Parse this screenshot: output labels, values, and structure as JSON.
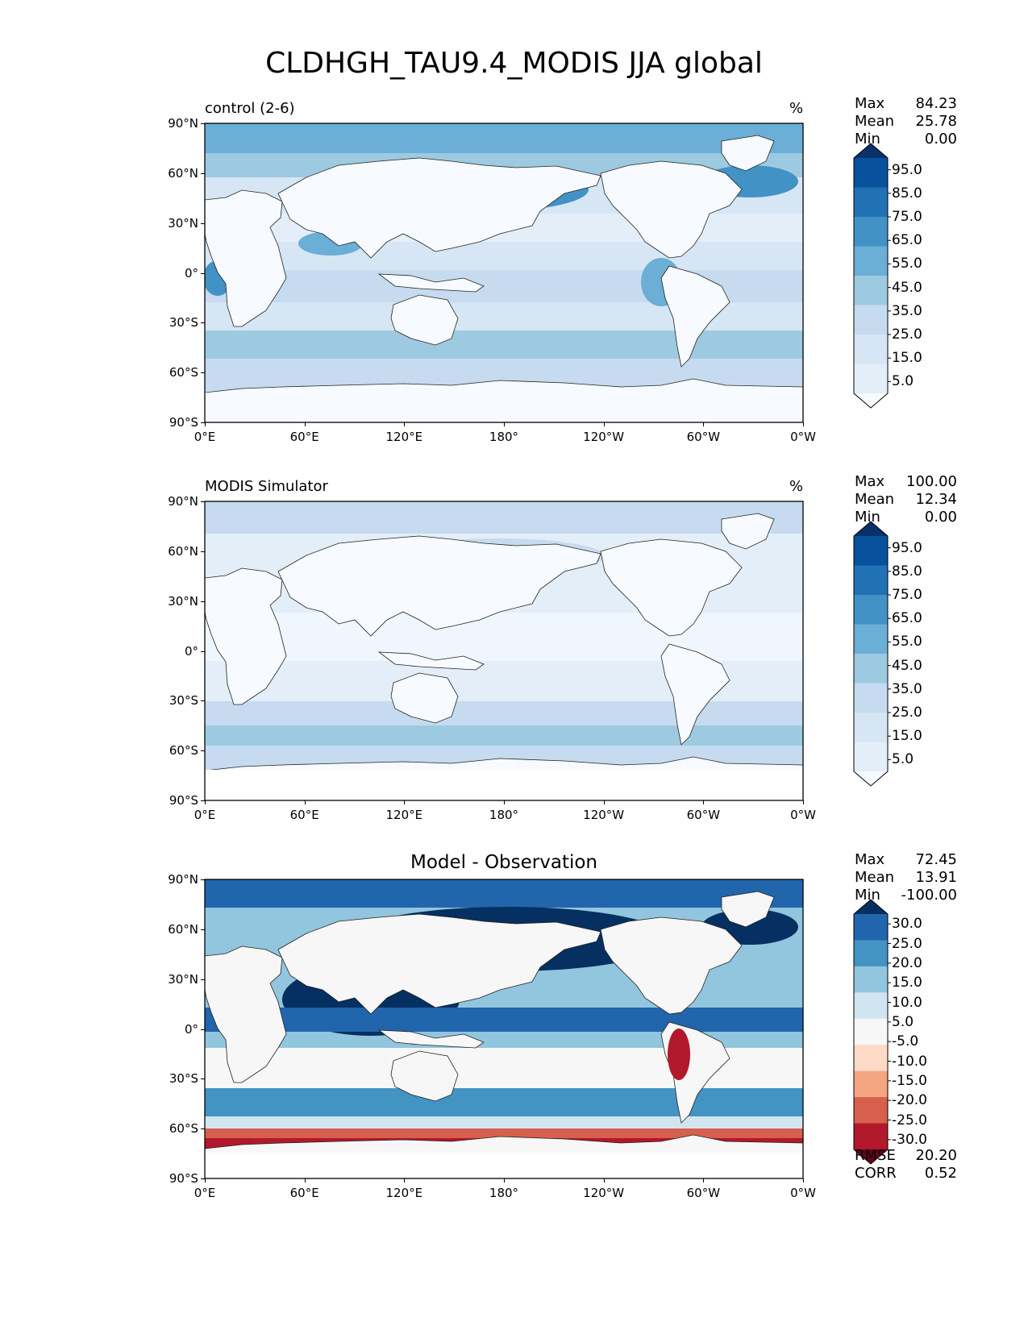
{
  "title": "CLDHGH_TAU9.4_MODIS JJA global",
  "lat_ticks": [
    "90°N",
    "60°N",
    "30°N",
    "0°",
    "30°S",
    "60°S",
    "90°S"
  ],
  "lon_ticks": [
    "0°E",
    "60°E",
    "120°E",
    "180°",
    "120°W",
    "60°W",
    "0°W"
  ],
  "panels": [
    {
      "left_title": "control (2-6)",
      "right_title": "%",
      "center_title": "",
      "stats": [
        {
          "label": "Max",
          "value": "84.23"
        },
        {
          "label": "Mean",
          "value": "25.78"
        },
        {
          "label": "Min",
          "value": "0.00"
        }
      ],
      "colorbar_labels": [
        "95.0",
        "85.0",
        "75.0",
        "65.0",
        "55.0",
        "45.0",
        "35.0",
        "25.0",
        "15.0",
        "5.0"
      ],
      "colorbar_colors": [
        "#08306b",
        "#08519c",
        "#2171b5",
        "#4292c6",
        "#6baed6",
        "#9ecae1",
        "#c6dbef",
        "#d6e6f4",
        "#e3eef9",
        "#f7fbff"
      ]
    },
    {
      "left_title": "MODIS Simulator",
      "right_title": "%",
      "center_title": "",
      "stats": [
        {
          "label": "Max",
          "value": "100.00"
        },
        {
          "label": "Mean",
          "value": "12.34"
        },
        {
          "label": "Min",
          "value": "0.00"
        }
      ],
      "colorbar_labels": [
        "95.0",
        "85.0",
        "75.0",
        "65.0",
        "55.0",
        "45.0",
        "35.0",
        "25.0",
        "15.0",
        "5.0"
      ],
      "colorbar_colors": [
        "#08306b",
        "#08519c",
        "#2171b5",
        "#4292c6",
        "#6baed6",
        "#9ecae1",
        "#c6dbef",
        "#d6e6f4",
        "#e3eef9",
        "#f7fbff"
      ]
    },
    {
      "left_title": "",
      "right_title": "",
      "center_title": "Model - Observation",
      "stats": [
        {
          "label": "Max",
          "value": "72.45"
        },
        {
          "label": "Mean",
          "value": "13.91"
        },
        {
          "label": "Min",
          "value": "-100.00"
        }
      ],
      "colorbar_labels": [
        "30.0",
        "25.0",
        "20.0",
        "15.0",
        "10.0",
        "5.0",
        "-5.0",
        "-10.0",
        "-15.0",
        "-20.0",
        "-25.0",
        "-30.0"
      ],
      "colorbar_colors": [
        "#053061",
        "#2166ac",
        "#4393c3",
        "#92c5de",
        "#d1e5f0",
        "#f7f7f7",
        "#fddbc7",
        "#f4a582",
        "#d6604d",
        "#b2182b",
        "#67001f"
      ],
      "metrics": [
        {
          "label": "RMSE",
          "value": "20.20"
        },
        {
          "label": "CORR",
          "value": "0.52"
        }
      ]
    }
  ]
}
